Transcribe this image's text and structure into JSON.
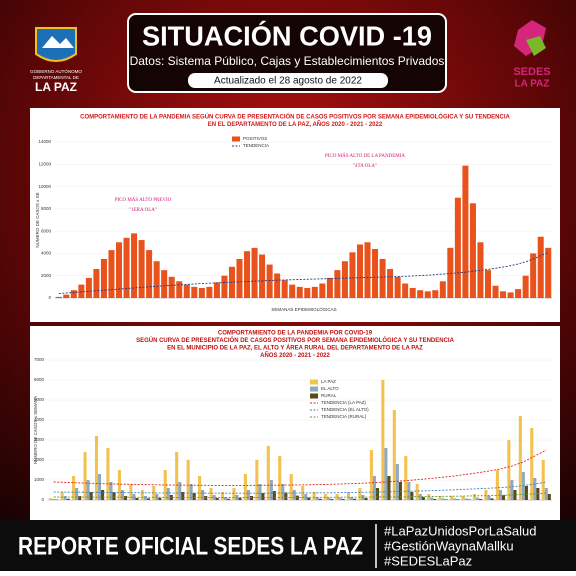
{
  "header": {
    "logo_left": [
      "GOBIERNO AUTÓNOMO",
      "DEPARTAMENTAL DE",
      "LA PAZ"
    ],
    "title": "SITUACIÓN COVID -19",
    "subtitle": "Datos: Sistema Público, Cajas y Establecimientos Privados",
    "updated": "Actualizado el  28 agosto de 2022",
    "logo_right": [
      "SEDES",
      "LA PAZ"
    ]
  },
  "chart_data": [
    {
      "type": "bar",
      "title": [
        "COMPORTAMIENTO DE LA PANDEMIA SEGÚN CURVA DE PRESENTACIÓN DE CASOS POSITIVOS POR SEMANA EPIDEMIOLÓGICA Y SU TENDENCIA",
        "EN EL DEPARTAMENTO DE LA PAZ, AÑOS 2020 - 2021 - 2022"
      ],
      "y_label": "NÚMERO DE CASOS x SE",
      "x_label": "SEMANAS EPIDEMIOLÓGICAS",
      "ylim": [
        0,
        14000
      ],
      "yticks": [
        0,
        2000,
        4000,
        6000,
        8000,
        10000,
        12000,
        14000
      ],
      "annotations": [
        "PICO MÁS ALTO PREVIO",
        "\"1ERA OLA\"",
        "PICO MÁS ALTO DE LA PANDEMIA",
        "\"4TA OLA\""
      ],
      "series": [
        {
          "name": "POSITIVOS",
          "type": "bar",
          "color": "#e8521c",
          "values": [
            100,
            300,
            700,
            1200,
            1800,
            2600,
            3500,
            4300,
            5000,
            5400,
            5800,
            5200,
            4300,
            3300,
            2500,
            1900,
            1500,
            1200,
            1000,
            900,
            1000,
            1400,
            2000,
            2800,
            3500,
            4200,
            4500,
            3900,
            3000,
            2200,
            1600,
            1200,
            1000,
            900,
            1000,
            1300,
            1800,
            2500,
            3300,
            4100,
            4800,
            5000,
            4400,
            3500,
            2600,
            1900,
            1300,
            900,
            700,
            600,
            700,
            1500,
            4500,
            9000,
            11877,
            8500,
            5000,
            2500,
            1100,
            600,
            500,
            800,
            2000,
            4000,
            5500,
            4500
          ]
        },
        {
          "name": "TENDENCIA",
          "type": "line",
          "color": "#1f3b8c",
          "values": [
            400,
            450,
            500,
            550,
            600,
            650,
            700,
            750,
            800,
            850,
            900,
            950,
            1000,
            1050,
            1100,
            1140,
            1180,
            1220,
            1260,
            1300,
            1330,
            1360,
            1390,
            1420,
            1450,
            1480,
            1510,
            1540,
            1570,
            1600,
            1620,
            1640,
            1660,
            1680,
            1700,
            1720,
            1740,
            1760,
            1780,
            1800,
            1820,
            1840,
            1860,
            1880,
            1900,
            1920,
            1950,
            1980,
            2010,
            2050,
            2100,
            2150,
            2200,
            2260,
            2320,
            2400,
            2480,
            2570,
            2670,
            2780,
            2900,
            3050,
            3250,
            3500,
            3800,
            4100
          ]
        }
      ]
    },
    {
      "type": "bar",
      "title": [
        "COMPORTAMIENTO DE LA PANDEMIA POR COVID-19",
        "SEGÚN CURVA DE PRESENTACIÓN DE CASOS POSITIVOS POR SEMANA EPIDEMIOLÓGICA Y SU TENDENCIA",
        "EN EL  MUNICIPIO DE LA PAZ, EL ALTO Y ÁREA RURAL DEL DEPARTAMENTO DE LA PAZ",
        "AÑOS 2020 - 2021 - 2022"
      ],
      "y_label": "NÚMERO DE CASOS x SEMANA",
      "ylim": [
        0,
        7000
      ],
      "yticks": [
        0,
        1000,
        2000,
        3000,
        4000,
        5000,
        6000,
        7000
      ],
      "series": [
        {
          "name": "LA PAZ",
          "type": "bar",
          "color": "#f2c14e",
          "values": [
            100,
            400,
            1200,
            2400,
            3200,
            2600,
            1500,
            800,
            500,
            700,
            1500,
            2400,
            2000,
            1200,
            600,
            400,
            600,
            1300,
            2000,
            2700,
            2200,
            1300,
            700,
            400,
            300,
            300,
            400,
            600,
            2500,
            6000,
            4500,
            2200,
            800,
            300,
            200,
            200,
            200,
            300,
            500,
            1500,
            3000,
            4200,
            3600,
            2000
          ]
        },
        {
          "name": "EL ALTO",
          "type": "bar",
          "color": "#8fa9bf",
          "values": [
            50,
            200,
            600,
            1000,
            1300,
            900,
            500,
            300,
            200,
            300,
            600,
            900,
            800,
            500,
            250,
            150,
            250,
            500,
            800,
            1000,
            800,
            500,
            300,
            150,
            120,
            120,
            150,
            250,
            1200,
            2600,
            1800,
            900,
            300,
            120,
            80,
            80,
            80,
            120,
            200,
            500,
            1000,
            1400,
            1100,
            600
          ]
        },
        {
          "name": "RURAL",
          "type": "bar",
          "color": "#5a4a1a",
          "values": [
            20,
            60,
            200,
            400,
            500,
            400,
            200,
            100,
            80,
            100,
            250,
            400,
            350,
            200,
            100,
            60,
            100,
            200,
            350,
            450,
            380,
            220,
            120,
            60,
            50,
            50,
            60,
            100,
            600,
            1200,
            900,
            400,
            150,
            50,
            30,
            30,
            30,
            50,
            80,
            250,
            500,
            700,
            600,
            300
          ]
        },
        {
          "name": "TENDENCIA (LA PAZ)",
          "type": "line",
          "color": "#e02020",
          "values": [
            900,
            880,
            860,
            840,
            820,
            800,
            790,
            780,
            770,
            760,
            750,
            745,
            740,
            735,
            730,
            730,
            730,
            730,
            735,
            740,
            745,
            750,
            760,
            770,
            780,
            800,
            820,
            840,
            870,
            900,
            940,
            980,
            1030,
            1080,
            1140,
            1200,
            1280,
            1360,
            1450,
            1550,
            1700,
            1900,
            2200,
            2500
          ]
        },
        {
          "name": "TENDENCIA (EL ALTO)",
          "type": "line",
          "color": "#3f7fc8",
          "values": [
            400,
            395,
            390,
            385,
            380,
            375,
            370,
            365,
            360,
            355,
            350,
            348,
            346,
            344,
            342,
            340,
            340,
            340,
            342,
            344,
            346,
            348,
            352,
            356,
            360,
            368,
            376,
            384,
            396,
            408,
            422,
            436,
            452,
            470,
            490,
            512,
            536,
            562,
            590,
            620,
            660,
            720,
            800,
            900
          ]
        },
        {
          "name": "TENDENCIA (RURAL)",
          "type": "line",
          "color": "#5e9a32",
          "values": [
            150,
            148,
            146,
            144,
            142,
            140,
            138,
            136,
            134,
            132,
            130,
            129,
            128,
            127,
            126,
            125,
            125,
            125,
            126,
            127,
            128,
            129,
            131,
            133,
            135,
            138,
            141,
            144,
            148,
            152,
            157,
            162,
            168,
            175,
            182,
            190,
            199,
            209,
            220,
            232,
            250,
            275,
            310,
            350
          ]
        }
      ]
    }
  ],
  "footer": {
    "title": "REPORTE OFICIAL SEDES LA PAZ",
    "hashtags": [
      "#LaPazUnidosPorLaSalud",
      "#GestiónWaynaMallku",
      "#SEDESLaPaz"
    ]
  }
}
